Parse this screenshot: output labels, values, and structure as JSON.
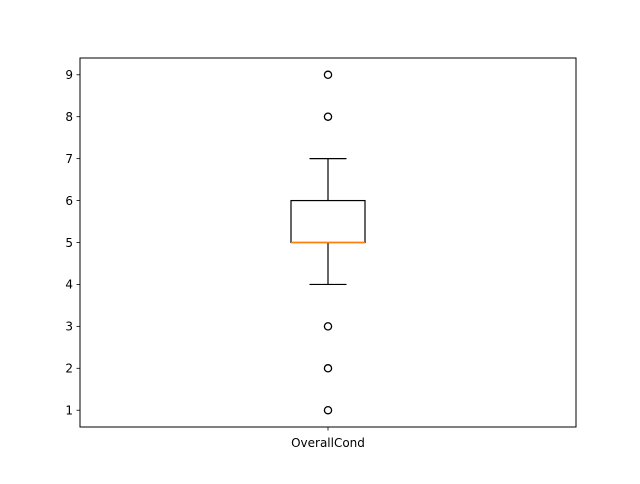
{
  "chart_data": {
    "type": "box",
    "title": "",
    "xlabel": "",
    "ylabel": "",
    "categories": [
      "OverallCond"
    ],
    "ylim": [
      0.6,
      9.4
    ],
    "yticks": [
      1,
      2,
      3,
      4,
      5,
      6,
      7,
      8,
      9
    ],
    "grid": false,
    "boxes": [
      {
        "label": "OverallCond",
        "whisker_low": 4,
        "q1": 5,
        "median": 5,
        "q3": 6,
        "whisker_high": 7,
        "outliers": [
          1,
          2,
          3,
          8,
          9
        ]
      }
    ],
    "colors": {
      "box": "#000000",
      "median": "#ff7f0e",
      "flier": "#000000"
    }
  }
}
